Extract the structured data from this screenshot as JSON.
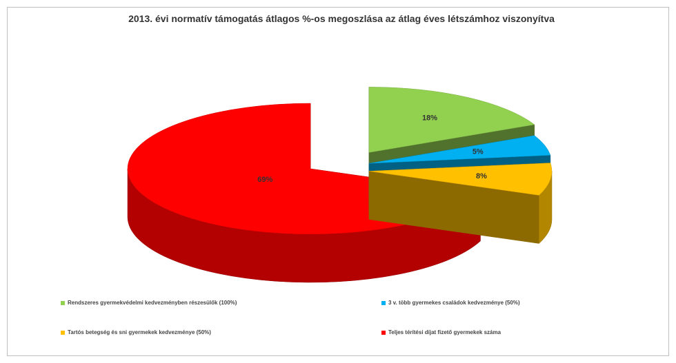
{
  "chart_data": {
    "type": "pie3d",
    "title": "2013. évi normatív támogatás átlagos %-os megoszlása az átlag éves létszámhoz viszonyítva",
    "categories": [
      "Rendszeres gyermekvédelmi kedvezményben részesülők (100%)",
      "3 v. több gyermekes családok kedvezménye (50%)",
      "Tartós betegség és sni gyermekek kedvezménye (50%)",
      "Teljes térítési díjat fizető gyermekek száma"
    ],
    "values": [
      18,
      5,
      8,
      69
    ],
    "value_labels": [
      "18%",
      "5%",
      "8%",
      "69%"
    ],
    "colors": [
      "#92d050",
      "#00b0f0",
      "#ffc000",
      "#ff0000"
    ],
    "legend": "bottom"
  }
}
